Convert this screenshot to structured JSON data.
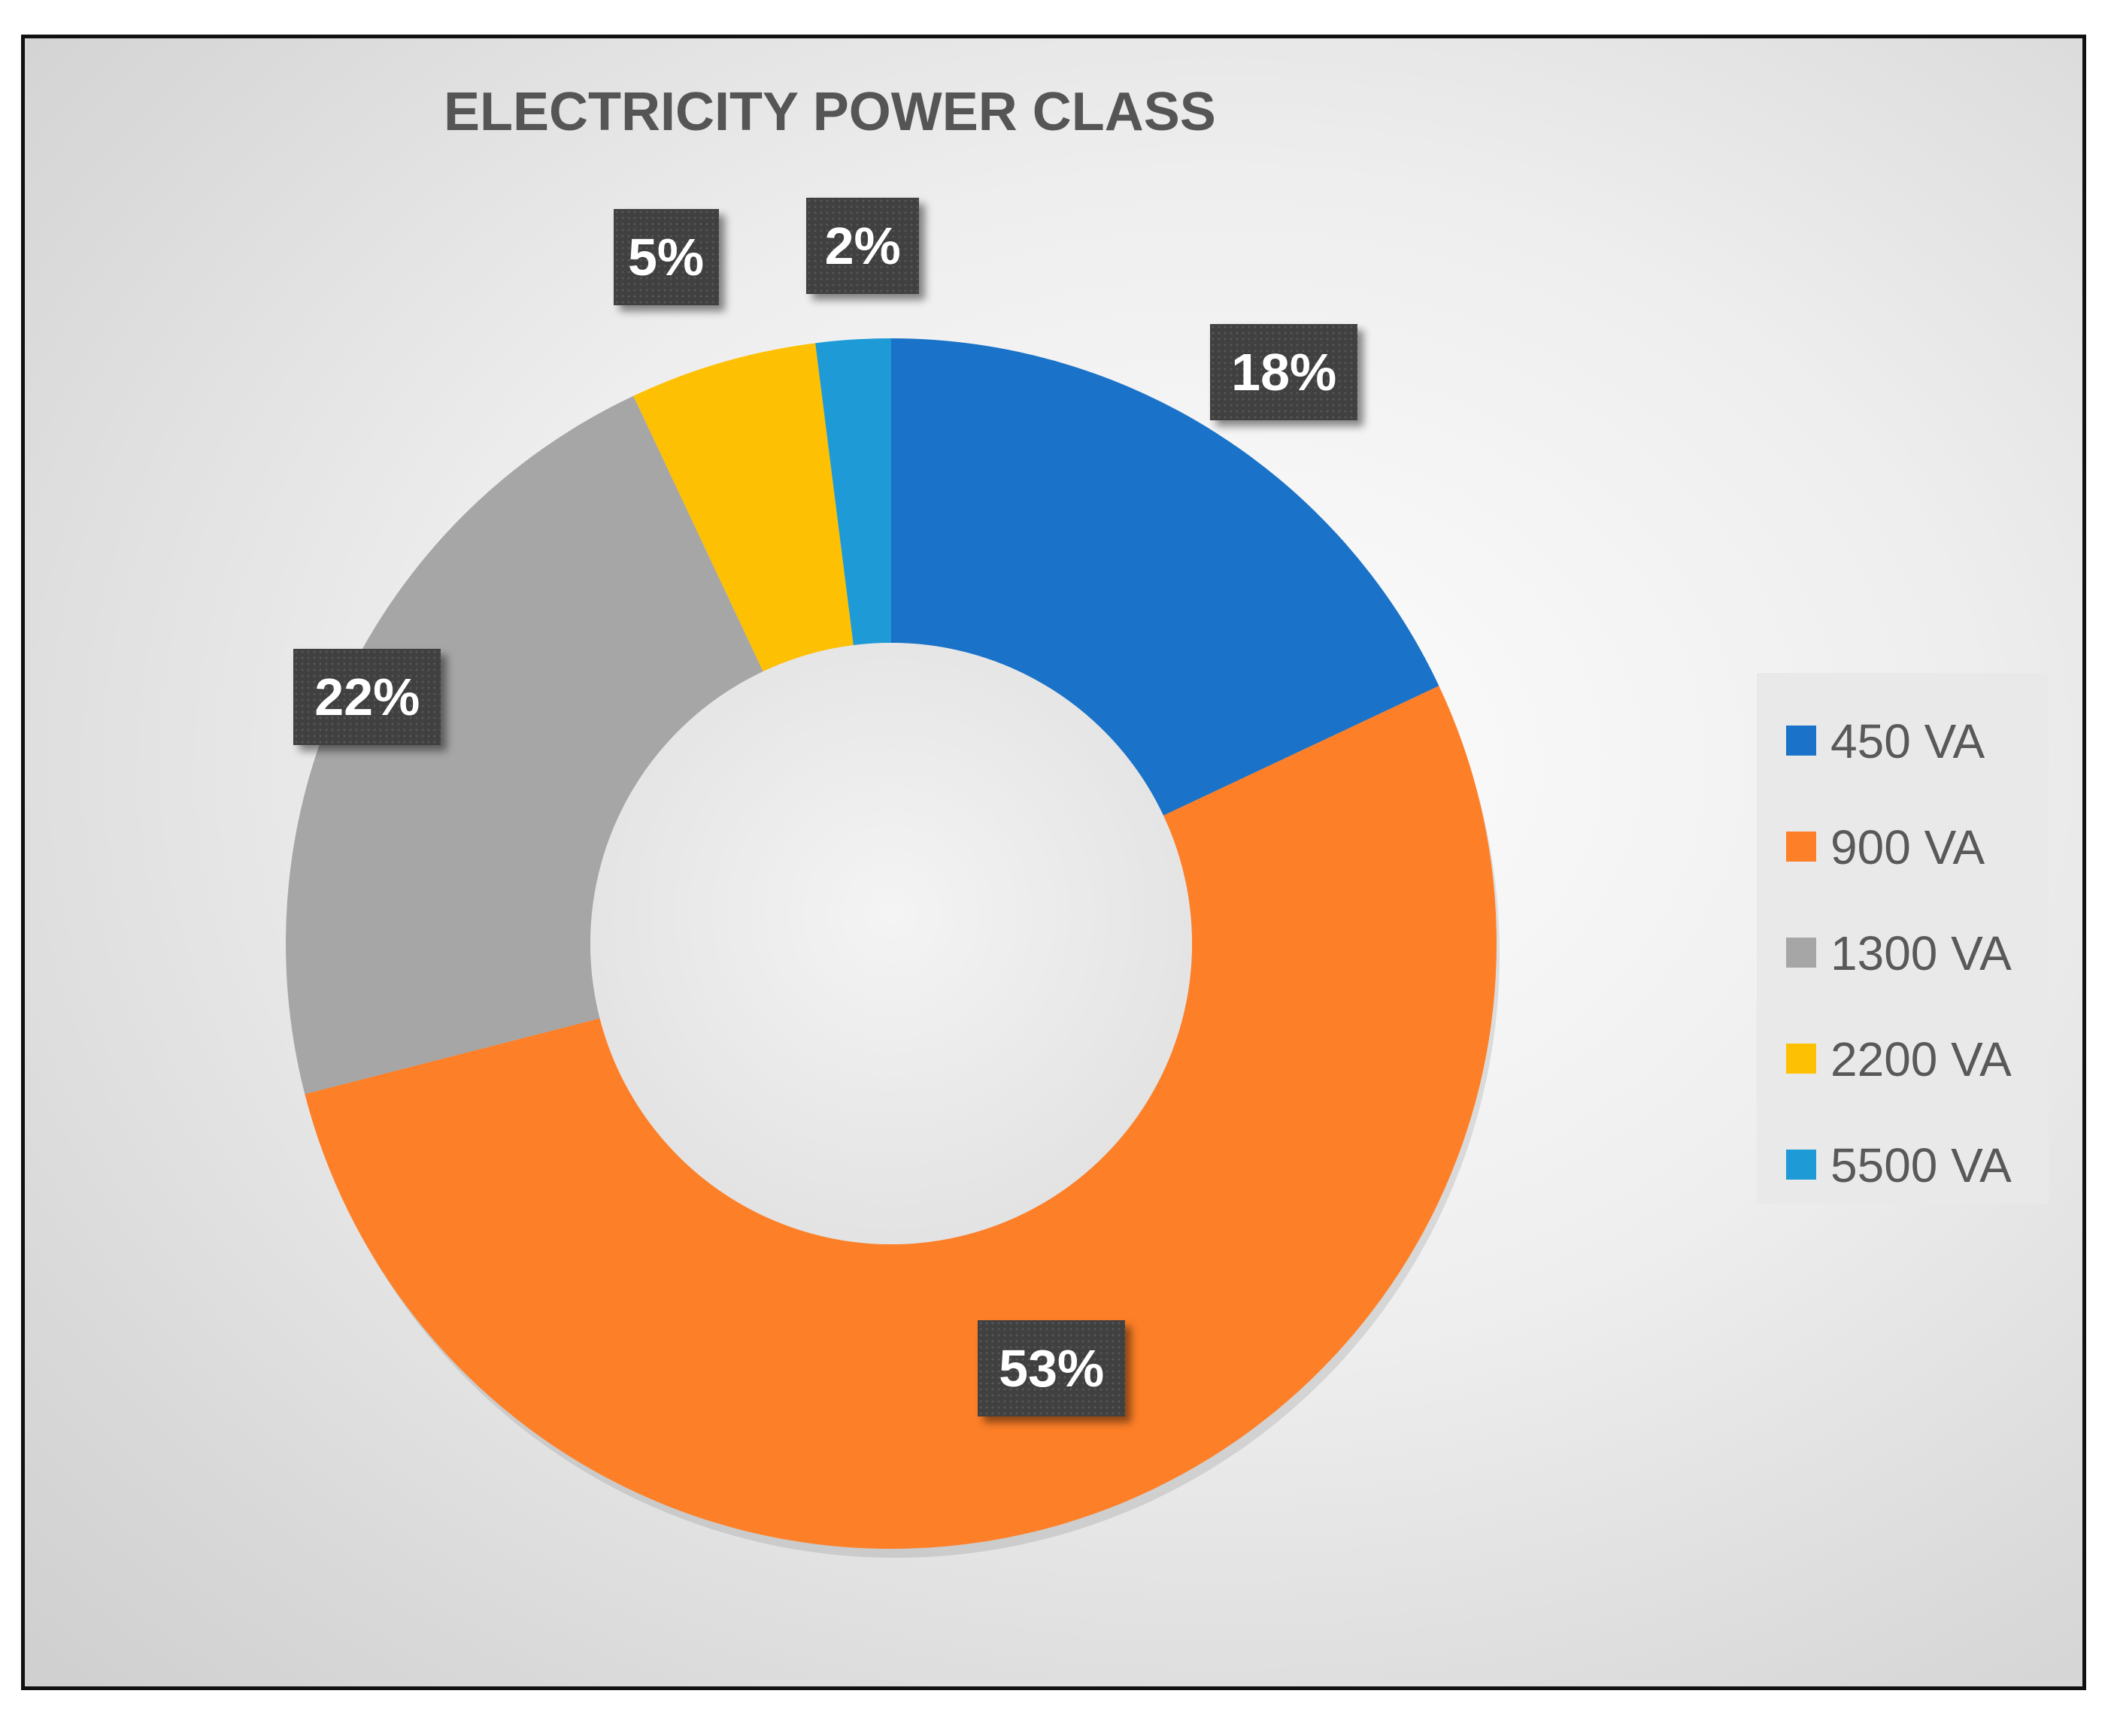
{
  "chart_data": {
    "type": "pie",
    "variant": "doughnut",
    "title": "ELECTRICITY POWER CLASS",
    "categories": [
      "450 VA",
      "900 VA",
      "1300 VA",
      "2200 VA",
      "5500 VA"
    ],
    "values": [
      18,
      53,
      22,
      5,
      2
    ],
    "data_labels": [
      "18%",
      "53%",
      "22%",
      "5%",
      "2%"
    ],
    "colors": [
      "#1a73c8",
      "#fd7f28",
      "#a6a6a6",
      "#fec003",
      "#1e9ad6"
    ],
    "legend_placement": "right"
  }
}
